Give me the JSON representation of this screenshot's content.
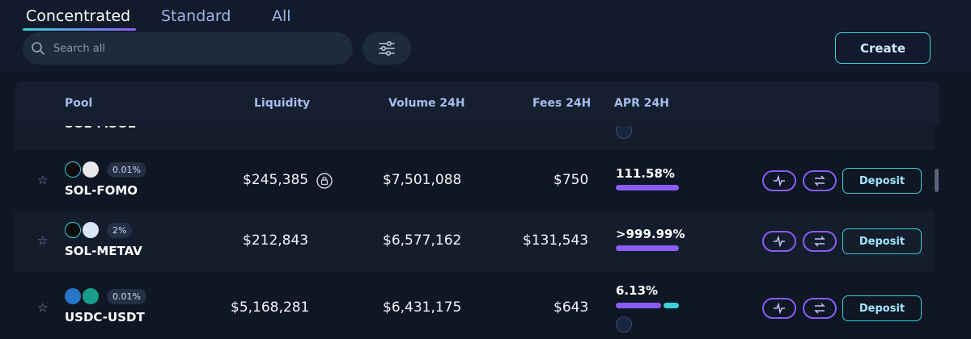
{
  "tabs": [
    {
      "label": "Concentrated",
      "active": true
    },
    {
      "label": "Standard",
      "active": false
    },
    {
      "label": "All",
      "active": false
    }
  ],
  "search": {
    "placeholder": "Search all",
    "value": ""
  },
  "create_label": "Create",
  "columns": [
    "Pool",
    "Liquidity",
    "Volume 24H",
    "Fees 24H",
    "APR 24H"
  ],
  "partial_row": {
    "name": "SOL-MSOL"
  },
  "rows": [
    {
      "name": "SOL-FOMO",
      "fee": "0.01%",
      "liquidity": "$245,385",
      "locked": true,
      "volume": "$7,501,088",
      "fees": "$750",
      "apr": "111.58%",
      "apr_split": [
        1.0
      ],
      "deposit": "Deposit"
    },
    {
      "name": "SOL-METAV",
      "fee": "2%",
      "liquidity": "$212,843",
      "locked": false,
      "volume": "$6,577,162",
      "fees": "$131,543",
      "apr": ">999.99%",
      "apr_split": [
        1.0
      ],
      "deposit": "Deposit"
    },
    {
      "name": "USDC-USDT",
      "fee": "0.01%",
      "liquidity": "$5,168,281",
      "locked": false,
      "volume": "$6,431,175",
      "fees": "$643",
      "apr": "6.13%",
      "apr_split": [
        0.72,
        0.28
      ],
      "deposit": "Deposit"
    }
  ],
  "colors": {
    "accent_cyan": "#39d0d8",
    "accent_purple": "#8b5cf6",
    "bg": "#0f1624"
  }
}
